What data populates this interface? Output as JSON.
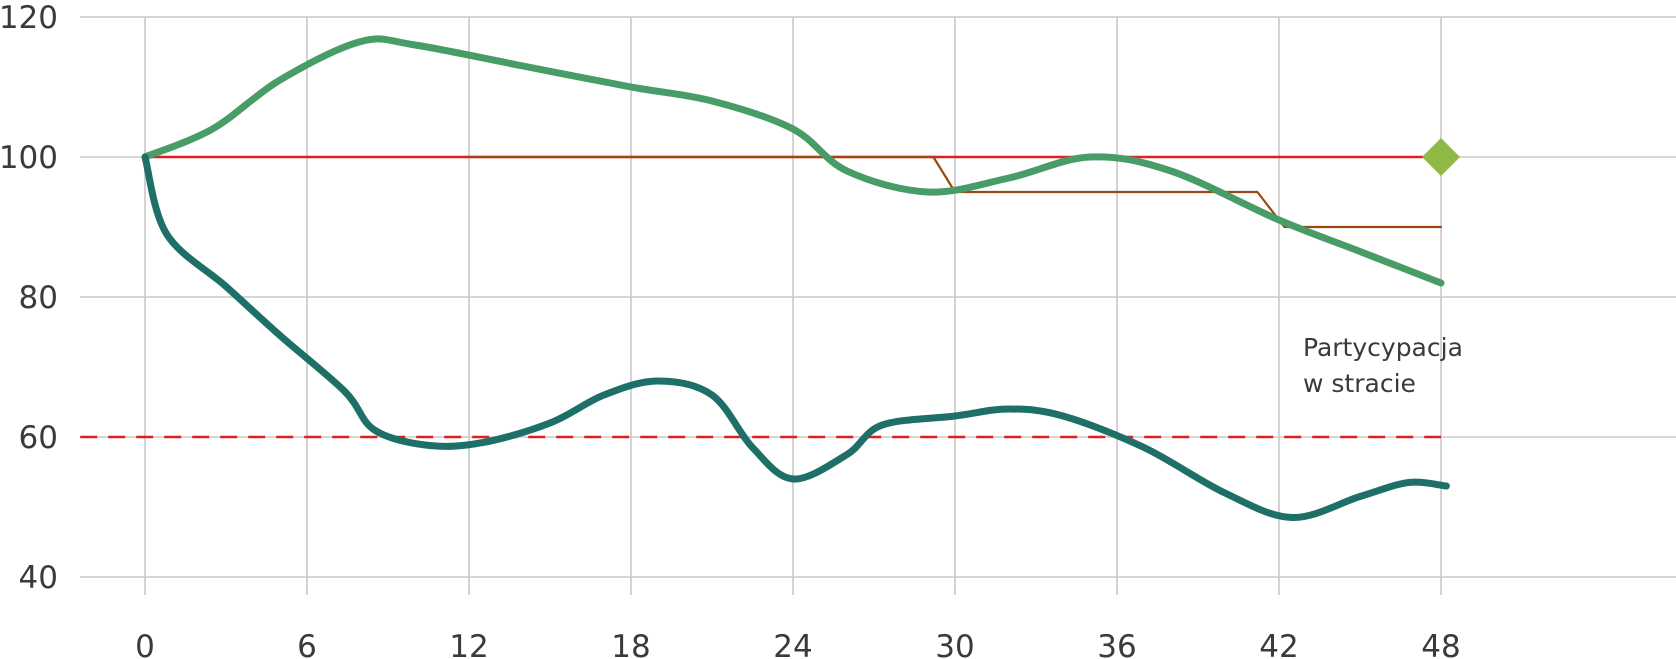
{
  "chart_data": {
    "type": "line",
    "title": "",
    "xlabel": "",
    "ylabel": "",
    "xlim": [
      0,
      48
    ],
    "ylim": [
      40,
      120
    ],
    "x_ticks": [
      0,
      6,
      12,
      18,
      24,
      30,
      36,
      42,
      48
    ],
    "y_ticks": [
      40,
      60,
      80,
      100,
      120
    ],
    "grid": true,
    "legend": "none",
    "annotation": {
      "lines": [
        "Partycypacja",
        "w stracie"
      ]
    },
    "series": [
      {
        "style": "solid-thin",
        "color": "#e02020",
        "x": [
          0,
          48
        ],
        "y": [
          100,
          100
        ]
      },
      {
        "style": "dashed",
        "color": "#e02020",
        "x": [
          -2.4,
          48
        ],
        "y": [
          60,
          60
        ]
      },
      {
        "style": "step-thin",
        "color": "#9a4a10",
        "x": [
          12,
          29.2,
          30,
          41.2,
          42.2,
          48
        ],
        "y": [
          100,
          100,
          95,
          95,
          90,
          90
        ]
      },
      {
        "style": "thick",
        "color": "#479c68",
        "x": [
          0,
          2.5,
          5,
          8,
          10,
          14,
          18,
          21,
          24,
          26,
          29,
          32,
          35,
          38,
          42,
          45,
          48
        ],
        "y": [
          100,
          104,
          111,
          116.5,
          116,
          113,
          110,
          108,
          104,
          98,
          95,
          97,
          100,
          98,
          91,
          86.5,
          82
        ]
      },
      {
        "style": "thick",
        "color": "#1e6f68",
        "x": [
          0,
          0.8,
          3,
          5,
          7.4,
          8.5,
          10.5,
          12.5,
          15,
          17,
          19,
          21,
          22.5,
          24,
          26,
          27.3,
          30,
          32,
          34,
          37,
          40,
          42.5,
          45,
          46.8,
          48.2
        ],
        "y": [
          100,
          89,
          81.5,
          74.5,
          66.5,
          61,
          58.8,
          59.2,
          62,
          66,
          68,
          66,
          58.5,
          54,
          57.5,
          61.7,
          63,
          64,
          63,
          58.5,
          52,
          48.5,
          51.5,
          53.5,
          53
        ]
      }
    ],
    "markers": [
      {
        "shape": "diamond",
        "color": "#8fba45",
        "x": 48,
        "y": 100
      }
    ]
  }
}
